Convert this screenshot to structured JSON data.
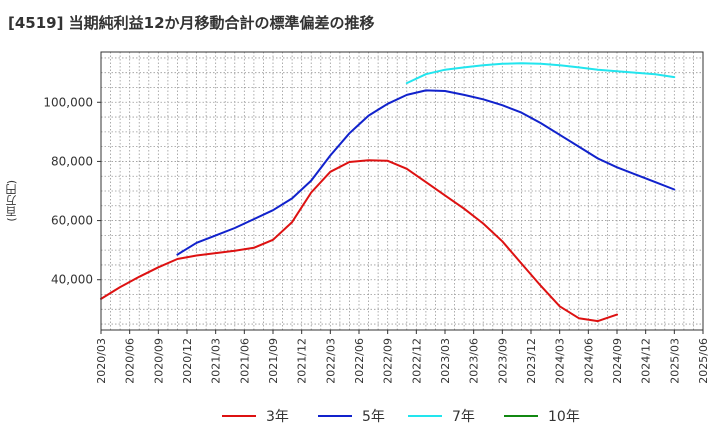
{
  "title": "[4519]  当期純利益12か月移動合計の標準偏差の推移",
  "ylabel": "(百万円)",
  "chart_data": {
    "type": "line",
    "title": "[4519]  当期純利益12か月移動合計の標準偏差の推移",
    "xlabel": "",
    "ylabel": "(百万円)",
    "x_tick_labels": [
      "2020/03",
      "2020/06",
      "2020/09",
      "2020/12",
      "2021/03",
      "2021/06",
      "2021/09",
      "2021/12",
      "2022/03",
      "2022/06",
      "2022/09",
      "2022/12",
      "2023/03",
      "2023/06",
      "2023/09",
      "2023/12",
      "2024/03",
      "2024/06",
      "2024/09",
      "2024/12",
      "2025/03",
      "2025/06"
    ],
    "y_ticks": [
      40000,
      60000,
      80000,
      100000
    ],
    "y_tick_labels": [
      "40,000",
      "60,000",
      "80,000",
      "100,000"
    ],
    "ylim": [
      23000,
      117000
    ],
    "xlim_months": [
      0,
      63
    ],
    "grid": true,
    "legend_position": "bottom",
    "series": [
      {
        "name": "3年",
        "color": "#dd1111",
        "months": [
          0,
          2,
          4,
          6,
          8,
          10,
          12,
          14,
          16,
          18,
          20,
          22,
          24,
          26,
          28,
          30,
          32,
          34,
          36,
          38,
          40,
          42,
          44,
          46,
          48,
          50,
          52,
          54,
          56,
          58,
          60
        ],
        "values": [
          33500,
          37500,
          41000,
          44200,
          47000,
          48200,
          49000,
          49800,
          50800,
          53500,
          59500,
          69500,
          76500,
          79800,
          80400,
          80200,
          77500,
          73000,
          68500,
          64000,
          59000,
          53000,
          45500,
          38000,
          31000,
          27000,
          26000,
          28200,
          null,
          null,
          null
        ]
      },
      {
        "name": "5年",
        "color": "#1122cc",
        "months": [
          8,
          10,
          12,
          14,
          16,
          18,
          20,
          22,
          24,
          26,
          28,
          30,
          32,
          34,
          36,
          38,
          40,
          42,
          44,
          46,
          48,
          50,
          52,
          54,
          56,
          58,
          60
        ],
        "values": [
          48500,
          52500,
          55000,
          57500,
          60500,
          63500,
          67500,
          73500,
          82000,
          89500,
          95500,
          99500,
          102500,
          104000,
          103800,
          102500,
          101000,
          99000,
          96500,
          93000,
          89000,
          85000,
          81000,
          78000,
          75500,
          73000,
          70500
        ]
      },
      {
        "name": "7年",
        "color": "#22e5ee",
        "months": [
          32,
          34,
          36,
          38,
          40,
          42,
          44,
          46,
          48,
          50,
          52,
          54,
          56,
          58,
          60
        ],
        "values": [
          106500,
          109500,
          111000,
          111800,
          112500,
          113000,
          113200,
          113000,
          112500,
          111800,
          111000,
          110500,
          110000,
          109500,
          108500
        ]
      },
      {
        "name": "10年",
        "color": "#118811",
        "months": [],
        "values": []
      }
    ]
  }
}
